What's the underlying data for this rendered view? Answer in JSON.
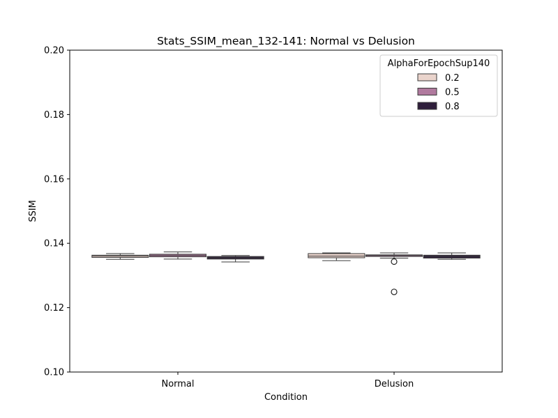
{
  "chart_data": {
    "type": "box",
    "title": "Stats_SSIM_mean_132-141: Normal vs Delusion",
    "xlabel": "Condition",
    "ylabel": "SSIM",
    "ylim": [
      0.1,
      0.2
    ],
    "yticks": [
      0.1,
      0.12,
      0.14,
      0.16,
      0.18,
      0.2
    ],
    "ytick_labels": [
      "0.10",
      "0.12",
      "0.14",
      "0.16",
      "0.18",
      "0.20"
    ],
    "categories": [
      "Normal",
      "Delusion"
    ],
    "grid": false,
    "legend": {
      "title": "AlphaForEpochSup140",
      "placement": "top-right",
      "entries": [
        "0.2",
        "0.5",
        "0.8"
      ]
    },
    "series": [
      {
        "name": "0.2",
        "color": "#ead4cc",
        "boxes": [
          {
            "category": "Normal",
            "whisker_low": 0.135,
            "q1": 0.1356,
            "median": 0.136,
            "q3": 0.1363,
            "whisker_high": 0.1368,
            "outliers": []
          },
          {
            "category": "Delusion",
            "whisker_low": 0.1346,
            "q1": 0.1355,
            "median": 0.136,
            "q3": 0.1368,
            "whisker_high": 0.137,
            "outliers": []
          }
        ]
      },
      {
        "name": "0.5",
        "color": "#b07a9e",
        "boxes": [
          {
            "category": "Normal",
            "whisker_low": 0.1351,
            "q1": 0.1358,
            "median": 0.1362,
            "q3": 0.1366,
            "whisker_high": 0.1373,
            "outliers": []
          },
          {
            "category": "Delusion",
            "whisker_low": 0.1354,
            "q1": 0.1359,
            "median": 0.1362,
            "q3": 0.1364,
            "whisker_high": 0.137,
            "outliers": [
              0.1343,
              0.1249
            ]
          }
        ]
      },
      {
        "name": "0.8",
        "color": "#2e1e3b",
        "boxes": [
          {
            "category": "Normal",
            "whisker_low": 0.1342,
            "q1": 0.1351,
            "median": 0.1355,
            "q3": 0.1359,
            "whisker_high": 0.1362,
            "outliers": []
          },
          {
            "category": "Delusion",
            "whisker_low": 0.135,
            "q1": 0.1354,
            "median": 0.1359,
            "q3": 0.1363,
            "whisker_high": 0.137,
            "outliers": []
          }
        ]
      }
    ]
  }
}
